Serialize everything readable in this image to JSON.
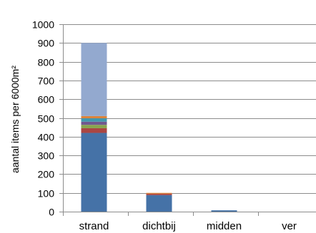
{
  "chart_data": {
    "type": "bar",
    "stacked": true,
    "categories": [
      "strand",
      "dichtbij",
      "midden",
      "ver"
    ],
    "ylabel": "aantal items per 6000m²",
    "ylim": [
      0,
      1000
    ],
    "yticks": [
      0,
      100,
      200,
      300,
      400,
      500,
      600,
      700,
      800,
      900,
      1000
    ],
    "grid": true,
    "series": [
      {
        "color": "#4572A7",
        "values": [
          420,
          88,
          7,
          0
        ]
      },
      {
        "color": "#AA4643",
        "values": [
          25,
          7,
          0,
          0
        ]
      },
      {
        "color": "#89A54E",
        "values": [
          18,
          0,
          0,
          0
        ]
      },
      {
        "color": "#71588F",
        "values": [
          17,
          0,
          0,
          0
        ]
      },
      {
        "color": "#4198AF",
        "values": [
          18,
          0,
          0,
          0
        ]
      },
      {
        "color": "#DB843D",
        "values": [
          12,
          5,
          0,
          0
        ]
      },
      {
        "color": "#93A9CF",
        "values": [
          390,
          0,
          0,
          0
        ]
      }
    ]
  }
}
